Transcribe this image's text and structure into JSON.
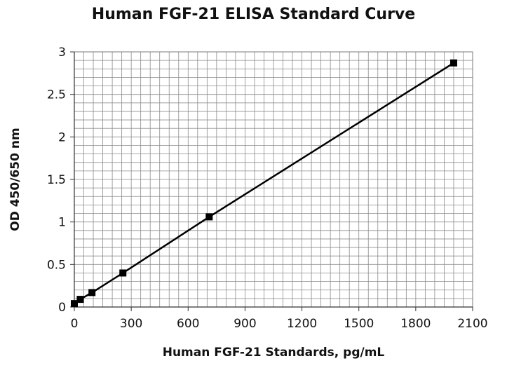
{
  "chart_data": {
    "type": "line",
    "title": "Human FGF-21 ELISA Standard Curve",
    "xlabel": "Human FGF-21 Standards, pg/mL",
    "ylabel": "OD 450/650 nm",
    "xlim": [
      0,
      2100
    ],
    "ylim": [
      0,
      3
    ],
    "xticks": [
      0,
      300,
      600,
      900,
      1200,
      1500,
      1800,
      2100
    ],
    "yticks": [
      0,
      0.5,
      1,
      1.5,
      2,
      2.5,
      3
    ],
    "xtick_labels": [
      "0",
      "300",
      "600",
      "900",
      "1200",
      "1500",
      "1800",
      "2100"
    ],
    "ytick_labels": [
      "0",
      "0.5",
      "1",
      "1.5",
      "2",
      "2.5",
      "3"
    ],
    "grid": true,
    "legend": "none",
    "series": [
      {
        "marker": "square",
        "color": "#000000",
        "x": [
          0,
          31,
          93,
          256,
          711,
          2000
        ],
        "y": [
          0.04,
          0.09,
          0.17,
          0.4,
          1.06,
          2.87
        ]
      }
    ]
  }
}
